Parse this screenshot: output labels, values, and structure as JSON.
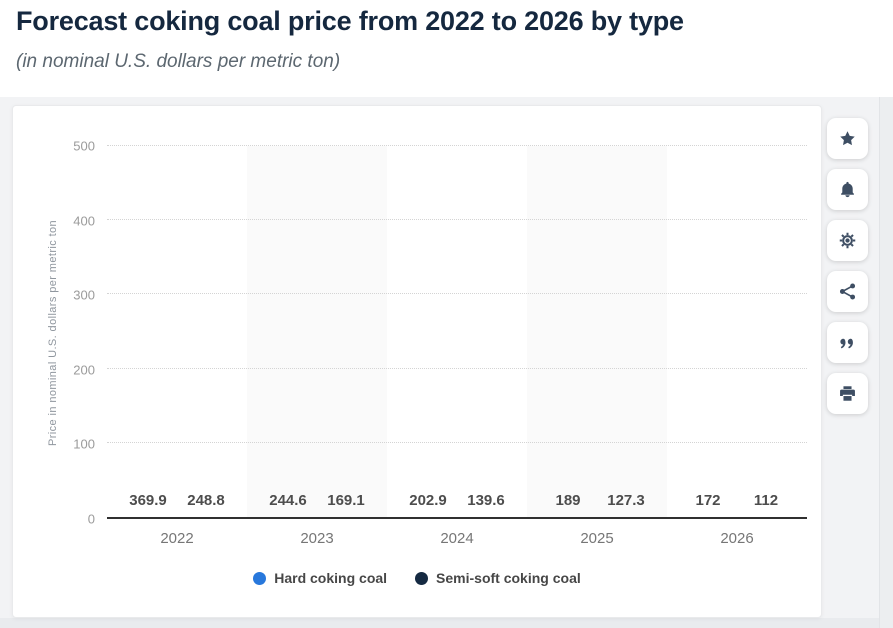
{
  "header": {
    "title": "Forecast coking coal price from 2022 to 2026 by type",
    "subtitle": "(in nominal U.S. dollars per metric ton)"
  },
  "chart_data": {
    "type": "bar",
    "title": "Forecast coking coal price from 2022 to 2026 by type",
    "categories": [
      "2022",
      "2023",
      "2024",
      "2025",
      "2026"
    ],
    "series": [
      {
        "name": "Hard coking coal",
        "color": "#2878dc",
        "values": [
          369.9,
          244.6,
          202.9,
          189,
          172
        ]
      },
      {
        "name": "Semi-soft coking coal",
        "color": "#152a42",
        "values": [
          248.8,
          169.1,
          139.6,
          127.3,
          112
        ]
      }
    ],
    "xlabel": "",
    "ylabel": "Price in nominal U.S. dollars per metric ton",
    "ylim": [
      0,
      500
    ],
    "yticks": [
      0,
      100,
      200,
      300,
      400,
      500
    ],
    "grid": true,
    "gridline_style": "dotted",
    "legend_position": "bottom",
    "value_labels": true
  },
  "toolbar": {
    "buttons": [
      {
        "name": "favorite-button",
        "icon": "star-icon"
      },
      {
        "name": "alerts-button",
        "icon": "bell-icon"
      },
      {
        "name": "settings-button",
        "icon": "gear-icon"
      },
      {
        "name": "share-button",
        "icon": "share-icon"
      },
      {
        "name": "cite-button",
        "icon": "quote-icon"
      },
      {
        "name": "print-button",
        "icon": "print-icon"
      }
    ]
  },
  "colors": {
    "hard_coking_coal": "#2878dc",
    "semi_soft_coking_coal": "#152a42",
    "icon": "#3e4e63"
  }
}
